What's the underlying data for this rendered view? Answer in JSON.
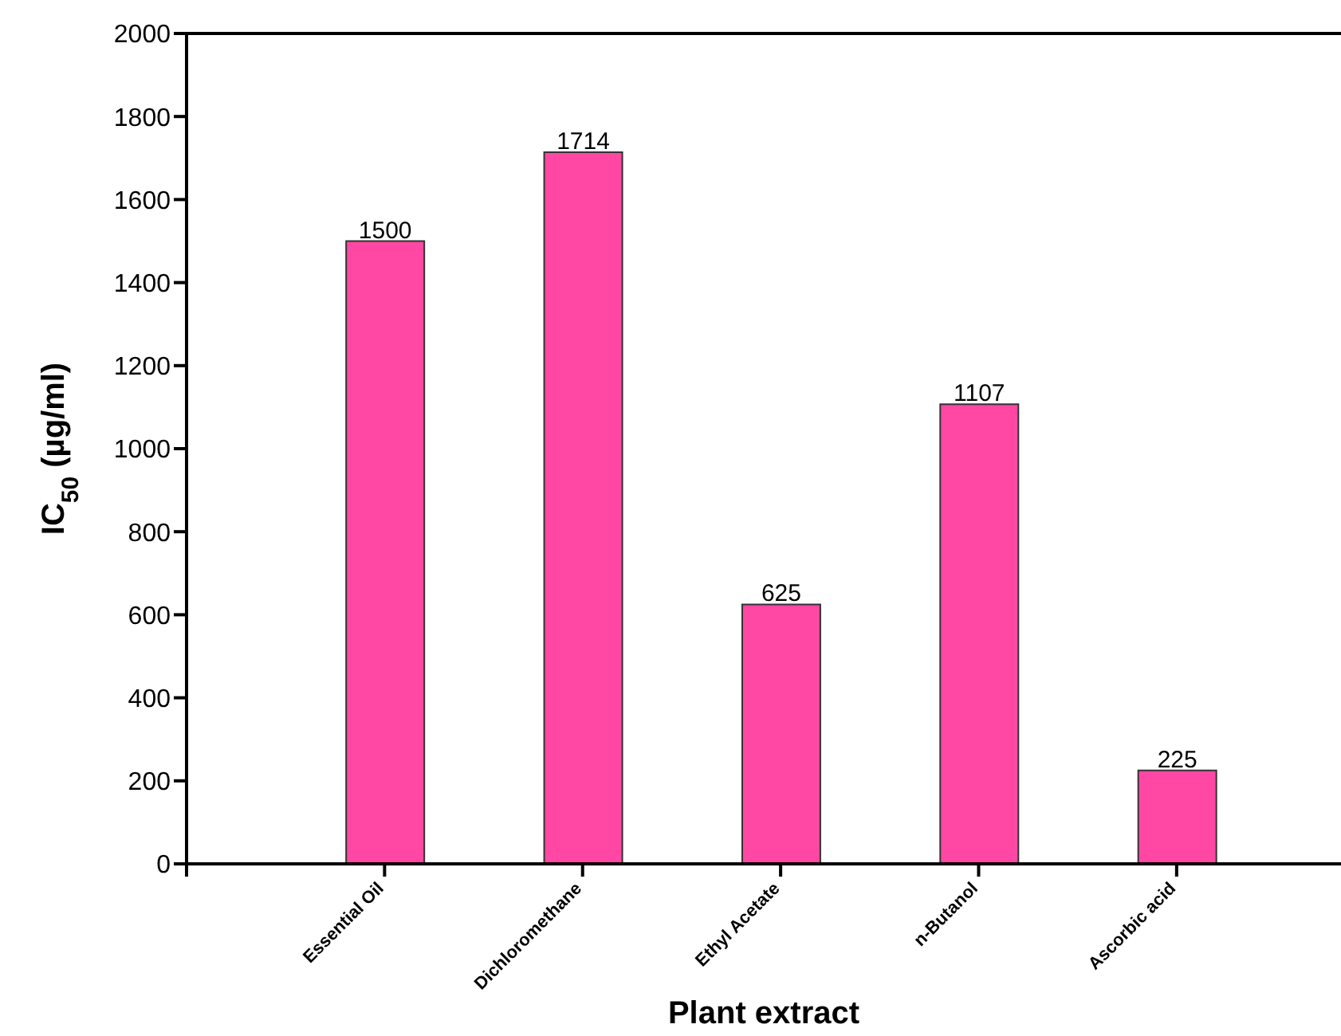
{
  "chart_data": {
    "type": "bar",
    "xlabel": "Plant extract",
    "ylabel": "IC$_{50}$ (µg/ml)",
    "categories": [
      "Essential Oil",
      "Dichloromethane",
      "Ethyl Acetate",
      "n-Butanol",
      "Ascorbic acid"
    ],
    "values": [
      1500,
      1714,
      625,
      1107,
      225
    ],
    "color": "#ff47a3",
    "ylim": [
      0,
      2000
    ],
    "yticks": [
      0,
      200,
      400,
      600,
      800,
      1000,
      1200,
      1400,
      1600,
      1800,
      2000
    ],
    "data_labels": true
  }
}
